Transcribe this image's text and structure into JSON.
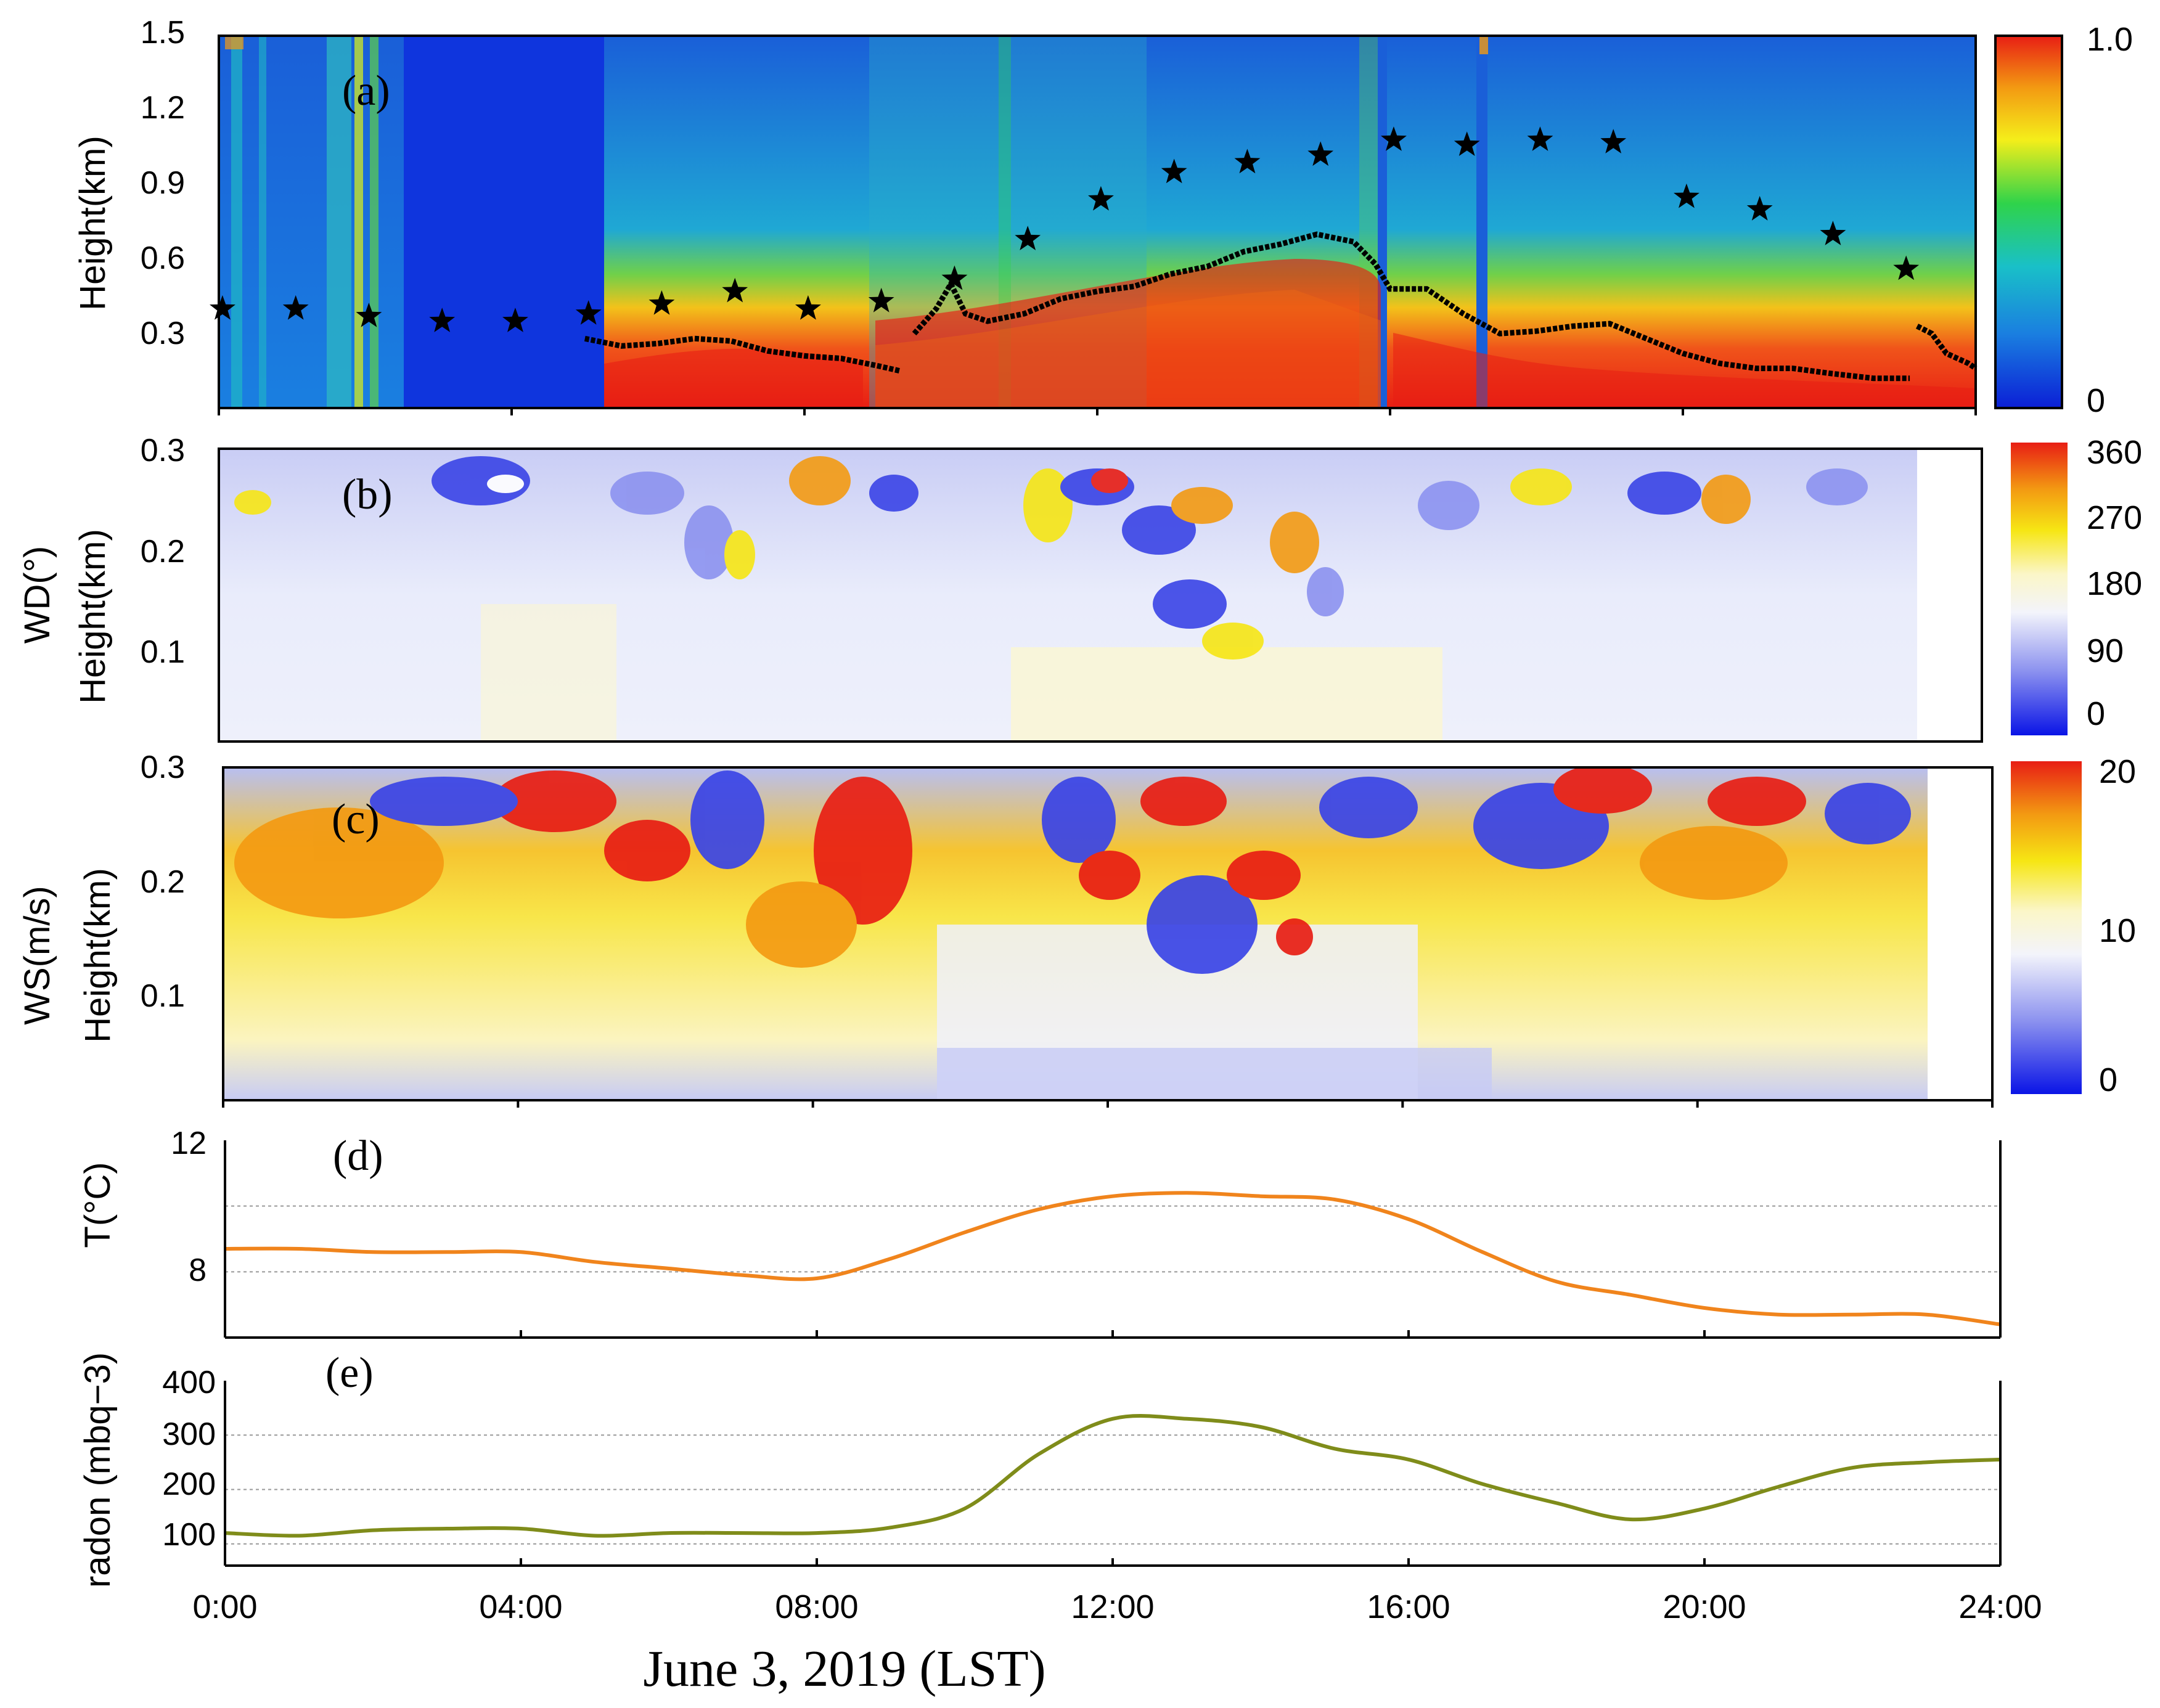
{
  "figure": {
    "xlabel": "June 3, 2019 (LST)",
    "xticks": [
      "0:00",
      "04:00",
      "08:00",
      "12:00",
      "16:00",
      "20:00",
      "24:00"
    ],
    "xlim_hours": [
      0,
      24
    ]
  },
  "chart_data": [
    {
      "id": "a",
      "type": "heatmap",
      "panel_label": "(a)",
      "ylabel": "Height(km)",
      "yticks": [
        "1.5",
        "1.2",
        "0.9",
        "0.6",
        "0.3"
      ],
      "ylim": [
        0.0,
        1.5
      ],
      "colorbar_labels": [
        "1.0",
        "0"
      ],
      "colorbar_range": [
        0,
        1.0
      ],
      "colors": [
        "#0b1fd6",
        "#1a7fe0",
        "#19c0c8",
        "#2fd34a",
        "#f4ee1a",
        "#f39a12",
        "#e81e14"
      ],
      "stars": [
        {
          "x": 0.05,
          "y": 0.4
        },
        {
          "x": 1.05,
          "y": 0.4
        },
        {
          "x": 2.05,
          "y": 0.37
        },
        {
          "x": 3.05,
          "y": 0.35
        },
        {
          "x": 4.05,
          "y": 0.35
        },
        {
          "x": 5.05,
          "y": 0.38
        },
        {
          "x": 6.05,
          "y": 0.42
        },
        {
          "x": 7.05,
          "y": 0.47
        },
        {
          "x": 8.05,
          "y": 0.4
        },
        {
          "x": 9.05,
          "y": 0.43
        },
        {
          "x": 10.05,
          "y": 0.52
        },
        {
          "x": 11.05,
          "y": 0.68
        },
        {
          "x": 12.05,
          "y": 0.84
        },
        {
          "x": 13.05,
          "y": 0.95
        },
        {
          "x": 14.05,
          "y": 0.99
        },
        {
          "x": 15.05,
          "y": 1.02
        },
        {
          "x": 16.05,
          "y": 1.08
        },
        {
          "x": 17.05,
          "y": 1.06
        },
        {
          "x": 18.05,
          "y": 1.08
        },
        {
          "x": 19.05,
          "y": 1.07
        },
        {
          "x": 20.05,
          "y": 0.85
        },
        {
          "x": 21.05,
          "y": 0.8
        },
        {
          "x": 22.05,
          "y": 0.7
        },
        {
          "x": 23.05,
          "y": 0.56
        }
      ],
      "mixing_layer": [
        [
          5.0,
          0.28
        ],
        [
          5.5,
          0.25
        ],
        [
          6.0,
          0.26
        ],
        [
          6.5,
          0.28
        ],
        [
          7.0,
          0.27
        ],
        [
          7.5,
          0.23
        ],
        [
          8.0,
          0.21
        ],
        [
          8.5,
          0.2
        ],
        [
          9.0,
          0.17
        ],
        [
          9.3,
          0.15
        ],
        [
          9.5,
          0.3
        ],
        [
          9.8,
          0.4
        ],
        [
          10.0,
          0.5
        ],
        [
          10.2,
          0.38
        ],
        [
          10.5,
          0.35
        ],
        [
          11.0,
          0.38
        ],
        [
          11.5,
          0.44
        ],
        [
          12.0,
          0.47
        ],
        [
          12.5,
          0.49
        ],
        [
          13.0,
          0.54
        ],
        [
          13.5,
          0.57
        ],
        [
          14.0,
          0.63
        ],
        [
          14.5,
          0.66
        ],
        [
          15.0,
          0.7
        ],
        [
          15.5,
          0.67
        ],
        [
          15.8,
          0.58
        ],
        [
          16.0,
          0.48
        ],
        [
          16.5,
          0.48
        ],
        [
          17.0,
          0.38
        ],
        [
          17.5,
          0.3
        ],
        [
          18.0,
          0.31
        ],
        [
          18.5,
          0.33
        ],
        [
          19.0,
          0.34
        ],
        [
          19.5,
          0.28
        ],
        [
          20.0,
          0.22
        ],
        [
          20.5,
          0.18
        ],
        [
          21.0,
          0.16
        ],
        [
          21.5,
          0.16
        ],
        [
          22.0,
          0.14
        ],
        [
          22.6,
          0.12
        ],
        [
          23.1,
          0.12
        ],
        [
          23.2,
          0.33
        ],
        [
          23.4,
          0.3
        ],
        [
          23.6,
          0.22
        ],
        [
          23.9,
          0.18
        ],
        [
          24.0,
          0.16
        ]
      ]
    },
    {
      "id": "b",
      "type": "heatmap",
      "panel_label": "(b)",
      "ylabel": "Height(km)",
      "ylabel2": "WD(°)",
      "yticks": [
        "0.3",
        "0.2",
        "0.1"
      ],
      "ylim": [
        0.0,
        0.3
      ],
      "colorbar_labels": [
        "360",
        "270",
        "180",
        "90",
        "0"
      ],
      "colorbar_range": [
        0,
        360
      ],
      "colors": [
        "#0a14e6",
        "#8c92ef",
        "#f3f4fb",
        "#fbf6c8",
        "#f6e614",
        "#f39a12",
        "#e81e14"
      ]
    },
    {
      "id": "c",
      "type": "heatmap",
      "panel_label": "(c)",
      "ylabel": "Height(km)",
      "ylabel2": "WS(m/s)",
      "yticks": [
        "0.3",
        "0.2",
        "0.1"
      ],
      "ylim": [
        0.0,
        0.3
      ],
      "colorbar_labels": [
        "20",
        "10",
        "0"
      ],
      "colorbar_range": [
        0,
        20
      ],
      "colors": [
        "#0a14e6",
        "#8c92ef",
        "#f3f4fb",
        "#fbf6c8",
        "#f6e614",
        "#f39a12",
        "#e81e14"
      ]
    },
    {
      "id": "d",
      "type": "line",
      "panel_label": "(d)",
      "ylabel": "T(°C)",
      "yticks": [
        "12",
        "8"
      ],
      "ylim": [
        6.0,
        12.0
      ],
      "color": "#f0841c",
      "x": [
        0,
        1,
        2,
        3,
        4,
        5,
        6,
        7,
        8,
        9,
        10,
        11,
        12,
        13,
        14,
        15,
        16,
        17,
        18,
        19,
        20,
        21,
        22,
        23,
        24
      ],
      "values": [
        8.7,
        8.7,
        8.6,
        8.6,
        8.6,
        8.3,
        8.1,
        7.9,
        7.8,
        8.4,
        9.2,
        9.9,
        10.3,
        10.4,
        10.3,
        10.2,
        9.6,
        8.6,
        7.7,
        7.3,
        6.9,
        6.7,
        6.7,
        6.7,
        6.4
      ]
    },
    {
      "id": "e",
      "type": "line",
      "panel_label": "(e)",
      "ylabel": "radon (mbq−3)",
      "yticks": [
        "400",
        "300",
        "200",
        "100"
      ],
      "ylim": [
        60,
        400
      ],
      "color": "#7f8c1a",
      "x": [
        0,
        1,
        2,
        3,
        4,
        5,
        6,
        7,
        8,
        9,
        10,
        11,
        12,
        13,
        14,
        15,
        16,
        17,
        18,
        19,
        20,
        21,
        22,
        23,
        24
      ],
      "values": [
        120,
        115,
        125,
        128,
        128,
        115,
        120,
        120,
        120,
        130,
        165,
        265,
        330,
        330,
        315,
        275,
        255,
        210,
        175,
        145,
        165,
        205,
        240,
        250,
        255
      ]
    }
  ]
}
